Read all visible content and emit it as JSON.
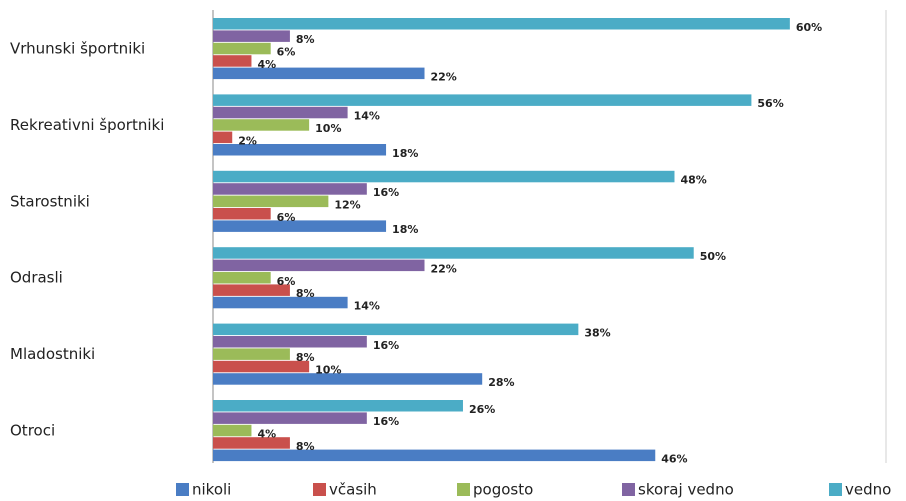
{
  "chart_data": {
    "type": "bar",
    "orientation": "horizontal",
    "categories": [
      "Vrhunski športniki",
      "Rekreativni športniki",
      "Starostniki",
      "Odrasli",
      "Mladostniki",
      "Otroci"
    ],
    "series": [
      {
        "name": "nikoli",
        "color": "#4a7dc4",
        "values": [
          22,
          18,
          18,
          14,
          28,
          46
        ],
        "value_labels": [
          "22%",
          "18%",
          "18%",
          "14%",
          "28%",
          "46%"
        ]
      },
      {
        "name": "včasih",
        "color": "#c9504c",
        "values": [
          4,
          2,
          6,
          8,
          10,
          8
        ],
        "value_labels": [
          "4%",
          "2%",
          "6%",
          "8%",
          "10%",
          "8%"
        ]
      },
      {
        "name": "pogosto",
        "color": "#9bbb59",
        "values": [
          6,
          10,
          12,
          6,
          8,
          4
        ],
        "value_labels": [
          "6%",
          "10%",
          "12%",
          "6%",
          "8%",
          "4%"
        ]
      },
      {
        "name": "skoraj vedno",
        "color": "#8064a2",
        "values": [
          8,
          14,
          16,
          22,
          16,
          16
        ],
        "value_labels": [
          "8%",
          "14%",
          "16%",
          "22%",
          "16%",
          "16%"
        ]
      },
      {
        "name": "vedno",
        "color": "#4bacc6",
        "values": [
          60,
          56,
          48,
          50,
          38,
          26
        ],
        "value_labels": [
          "60%",
          "56%",
          "48%",
          "50%",
          "38%",
          "26%"
        ]
      }
    ],
    "xlim": [
      0,
      70
    ],
    "legend": "bottom"
  }
}
